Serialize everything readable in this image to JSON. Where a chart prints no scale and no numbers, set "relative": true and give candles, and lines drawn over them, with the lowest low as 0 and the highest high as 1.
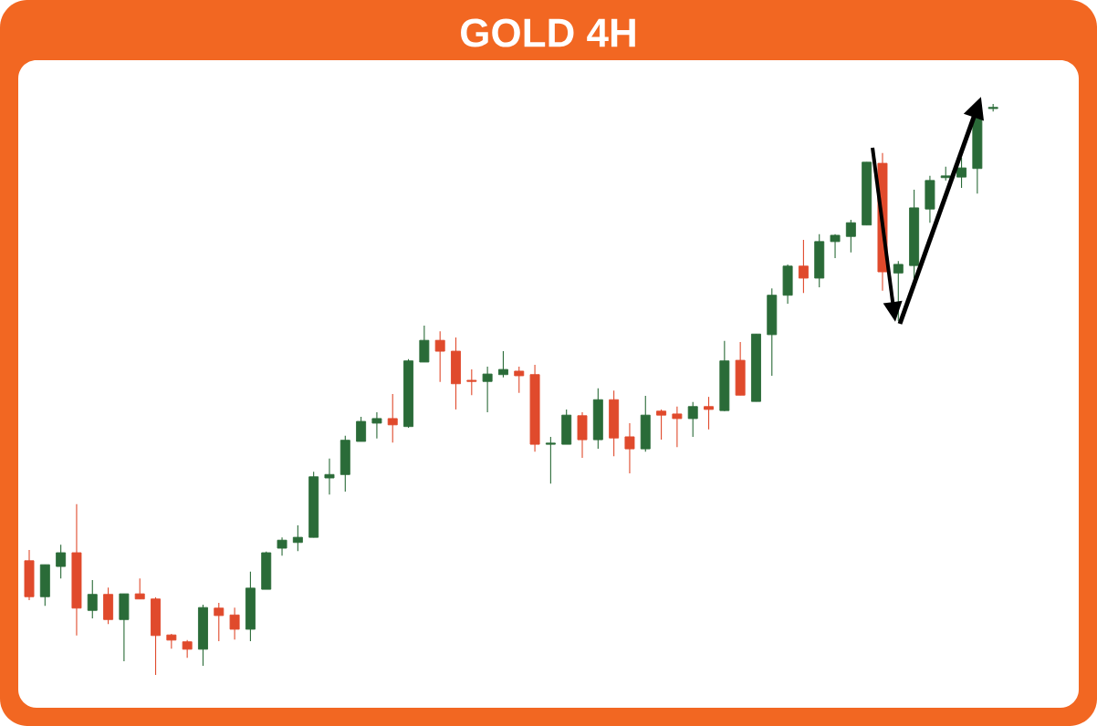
{
  "chart_data": {
    "type": "candlestick",
    "title": "GOLD 4H",
    "relative": true,
    "categories": [
      null,
      null,
      null,
      null,
      null,
      null,
      null,
      null,
      null,
      null,
      null,
      null,
      null,
      null,
      null,
      null,
      null,
      null,
      null,
      null,
      null,
      null,
      null,
      null,
      null,
      null,
      null,
      null,
      null,
      null,
      null,
      null,
      null,
      null,
      null,
      null,
      null,
      null,
      null,
      null,
      null,
      null,
      null,
      null,
      null,
      null,
      null,
      null,
      null,
      null,
      null,
      null,
      null,
      null,
      null,
      null,
      null,
      null,
      null,
      null,
      null,
      null
    ],
    "ohlc": [
      [
        0.2,
        0.219,
        0.131,
        0.137
      ],
      [
        0.137,
        0.193,
        0.121,
        0.193
      ],
      [
        0.19,
        0.228,
        0.169,
        0.214
      ],
      [
        0.214,
        0.299,
        0.069,
        0.117
      ],
      [
        0.113,
        0.166,
        0.099,
        0.141
      ],
      [
        0.141,
        0.153,
        0.089,
        0.097
      ],
      [
        0.097,
        0.142,
        0.024,
        0.142
      ],
      [
        0.142,
        0.169,
        0.133,
        0.133
      ],
      [
        0.133,
        0.136,
        0.0,
        0.069
      ],
      [
        0.07,
        0.072,
        0.046,
        0.061
      ],
      [
        0.058,
        0.061,
        0.03,
        0.045
      ],
      [
        0.045,
        0.123,
        0.016,
        0.118
      ],
      [
        0.117,
        0.126,
        0.059,
        0.104
      ],
      [
        0.105,
        0.118,
        0.062,
        0.08
      ],
      [
        0.08,
        0.181,
        0.059,
        0.152
      ],
      [
        0.15,
        0.216,
        0.15,
        0.214
      ],
      [
        0.222,
        0.241,
        0.209,
        0.236
      ],
      [
        0.232,
        0.262,
        0.217,
        0.241
      ],
      [
        0.241,
        0.356,
        0.241,
        0.347
      ],
      [
        0.345,
        0.379,
        0.316,
        0.351
      ],
      [
        0.351,
        0.419,
        0.321,
        0.411
      ],
      [
        0.409,
        0.452,
        0.409,
        0.444
      ],
      [
        0.441,
        0.46,
        0.414,
        0.449
      ],
      [
        0.449,
        0.492,
        0.407,
        0.438
      ],
      [
        0.435,
        0.553,
        0.433,
        0.55
      ],
      [
        0.548,
        0.612,
        0.548,
        0.586
      ],
      [
        0.586,
        0.602,
        0.513,
        0.567
      ],
      [
        0.567,
        0.591,
        0.465,
        0.51
      ],
      [
        0.516,
        0.535,
        0.49,
        0.514
      ],
      [
        0.514,
        0.54,
        0.46,
        0.527
      ],
      [
        0.526,
        0.567,
        0.521,
        0.535
      ],
      [
        0.532,
        0.54,
        0.494,
        0.524
      ],
      [
        0.526,
        0.543,
        0.391,
        0.404
      ],
      [
        0.404,
        0.417,
        0.335,
        0.406
      ],
      [
        0.404,
        0.465,
        0.404,
        0.455
      ],
      [
        0.454,
        0.46,
        0.38,
        0.412
      ],
      [
        0.412,
        0.502,
        0.396,
        0.482
      ],
      [
        0.482,
        0.498,
        0.383,
        0.415
      ],
      [
        0.417,
        0.441,
        0.353,
        0.396
      ],
      [
        0.396,
        0.489,
        0.391,
        0.455
      ],
      [
        0.462,
        0.465,
        0.412,
        0.455
      ],
      [
        0.457,
        0.47,
        0.399,
        0.449
      ],
      [
        0.449,
        0.478,
        0.417,
        0.47
      ],
      [
        0.47,
        0.487,
        0.43,
        0.465
      ],
      [
        0.463,
        0.585,
        0.462,
        0.55
      ],
      [
        0.551,
        0.583,
        0.49,
        0.49
      ],
      [
        0.479,
        0.597,
        0.479,
        0.597
      ],
      [
        0.596,
        0.677,
        0.524,
        0.665
      ],
      [
        0.665,
        0.719,
        0.65,
        0.716
      ],
      [
        0.716,
        0.762,
        0.669,
        0.695
      ],
      [
        0.695,
        0.772,
        0.679,
        0.759
      ],
      [
        0.759,
        0.772,
        0.73,
        0.77
      ],
      [
        0.768,
        0.797,
        0.74,
        0.792
      ],
      [
        0.788,
        0.898,
        0.788,
        0.898
      ],
      [
        0.896,
        0.914,
        0.673,
        0.706
      ],
      [
        0.704,
        0.725,
        0.62,
        0.719
      ],
      [
        0.717,
        0.85,
        0.695,
        0.818
      ],
      [
        0.816,
        0.874,
        0.792,
        0.866
      ],
      [
        0.871,
        0.89,
        0.866,
        0.874
      ],
      [
        0.872,
        0.906,
        0.853,
        0.888
      ],
      [
        0.887,
        0.978,
        0.843,
        0.978
      ],
      [
        0.992,
        1.0,
        0.987,
        0.994
      ]
    ],
    "colors": [
      "#e04a2c",
      "#2a6b38",
      "#2a6b38",
      "#e04a2c",
      "#2a6b38",
      "#e04a2c",
      "#2a6b38",
      "#e04a2c",
      "#e04a2c",
      "#e04a2c",
      "#e04a2c",
      "#2a6b38",
      "#e04a2c",
      "#e04a2c",
      "#2a6b38",
      "#2a6b38",
      "#2a6b38",
      "#2a6b38",
      "#2a6b38",
      "#2a6b38",
      "#2a6b38",
      "#2a6b38",
      "#2a6b38",
      "#e04a2c",
      "#2a6b38",
      "#2a6b38",
      "#e04a2c",
      "#e04a2c",
      "#e04a2c",
      "#2a6b38",
      "#2a6b38",
      "#e04a2c",
      "#e04a2c",
      "#2a6b38",
      "#2a6b38",
      "#e04a2c",
      "#2a6b38",
      "#e04a2c",
      "#e04a2c",
      "#2a6b38",
      "#e04a2c",
      "#e04a2c",
      "#2a6b38",
      "#e04a2c",
      "#2a6b38",
      "#e04a2c",
      "#2a6b38",
      "#2a6b38",
      "#2a6b38",
      "#e04a2c",
      "#2a6b38",
      "#2a6b38",
      "#2a6b38",
      "#2a6b38",
      "#e04a2c",
      "#2a6b38",
      "#2a6b38",
      "#2a6b38",
      "#2a6b38",
      "#2a6b38",
      "#2a6b38",
      "#2a6b38"
    ]
  }
}
